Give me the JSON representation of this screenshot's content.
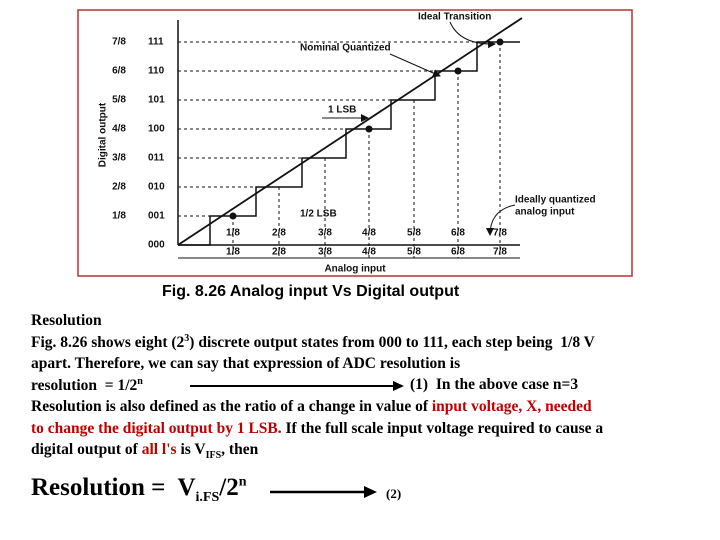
{
  "figure": {
    "y_axis_title": "Digital output",
    "x_axis_title": "Analog input",
    "y_fractions": [
      "7/8",
      "6/8",
      "5/8",
      "4/8",
      "3/8",
      "2/8",
      "1/8"
    ],
    "codes": [
      "111",
      "110",
      "101",
      "100",
      "011",
      "010",
      "001",
      "000"
    ],
    "x_labels_upper": [
      "1/8",
      "2/8",
      "3/8",
      "4/8",
      "5/8",
      "6/8",
      "7/8"
    ],
    "x_labels_lower": [
      "1/8",
      "2/8",
      "3/8",
      "4/8",
      "5/8",
      "6/8",
      "7/8"
    ],
    "annotations": {
      "ideal_transition": "Ideal Transition",
      "nominal_quantized": "Nominal Quantized",
      "one_lsb": "1 LSB",
      "half_lsb": "1/2 LSB",
      "ideally_quantized": [
        "Ideally quantized",
        "analog input"
      ]
    }
  },
  "caption": "Fig. 8.26 Analog input Vs Digital output",
  "body": {
    "line1": [
      "Resolution"
    ],
    "line2": [
      "Fig. 8.26 shows eight (2",
      "3",
      ") discrete output states from 000 to 111, each step being  1/8 V"
    ],
    "line3": [
      "apart. Therefore, we can say that expression of ADC resolution is"
    ],
    "line4": [
      "resolution  = 1/2",
      "n",
      "(1)  In the above case n=3"
    ],
    "line5": [
      "Resolution is also defined as the ratio of a change in value of ",
      "input voltage, X, needed"
    ],
    "line6": [
      "to change the digital output by 1 LSB.",
      " If the full scale input voltage required to cause a"
    ],
    "line7": [
      "digital output of ",
      "all l's",
      " is V",
      "IFS",
      ", then"
    ]
  },
  "formula": [
    "Resolution =  V",
    "i.FS",
    "/2",
    "n",
    "(2)"
  ]
}
